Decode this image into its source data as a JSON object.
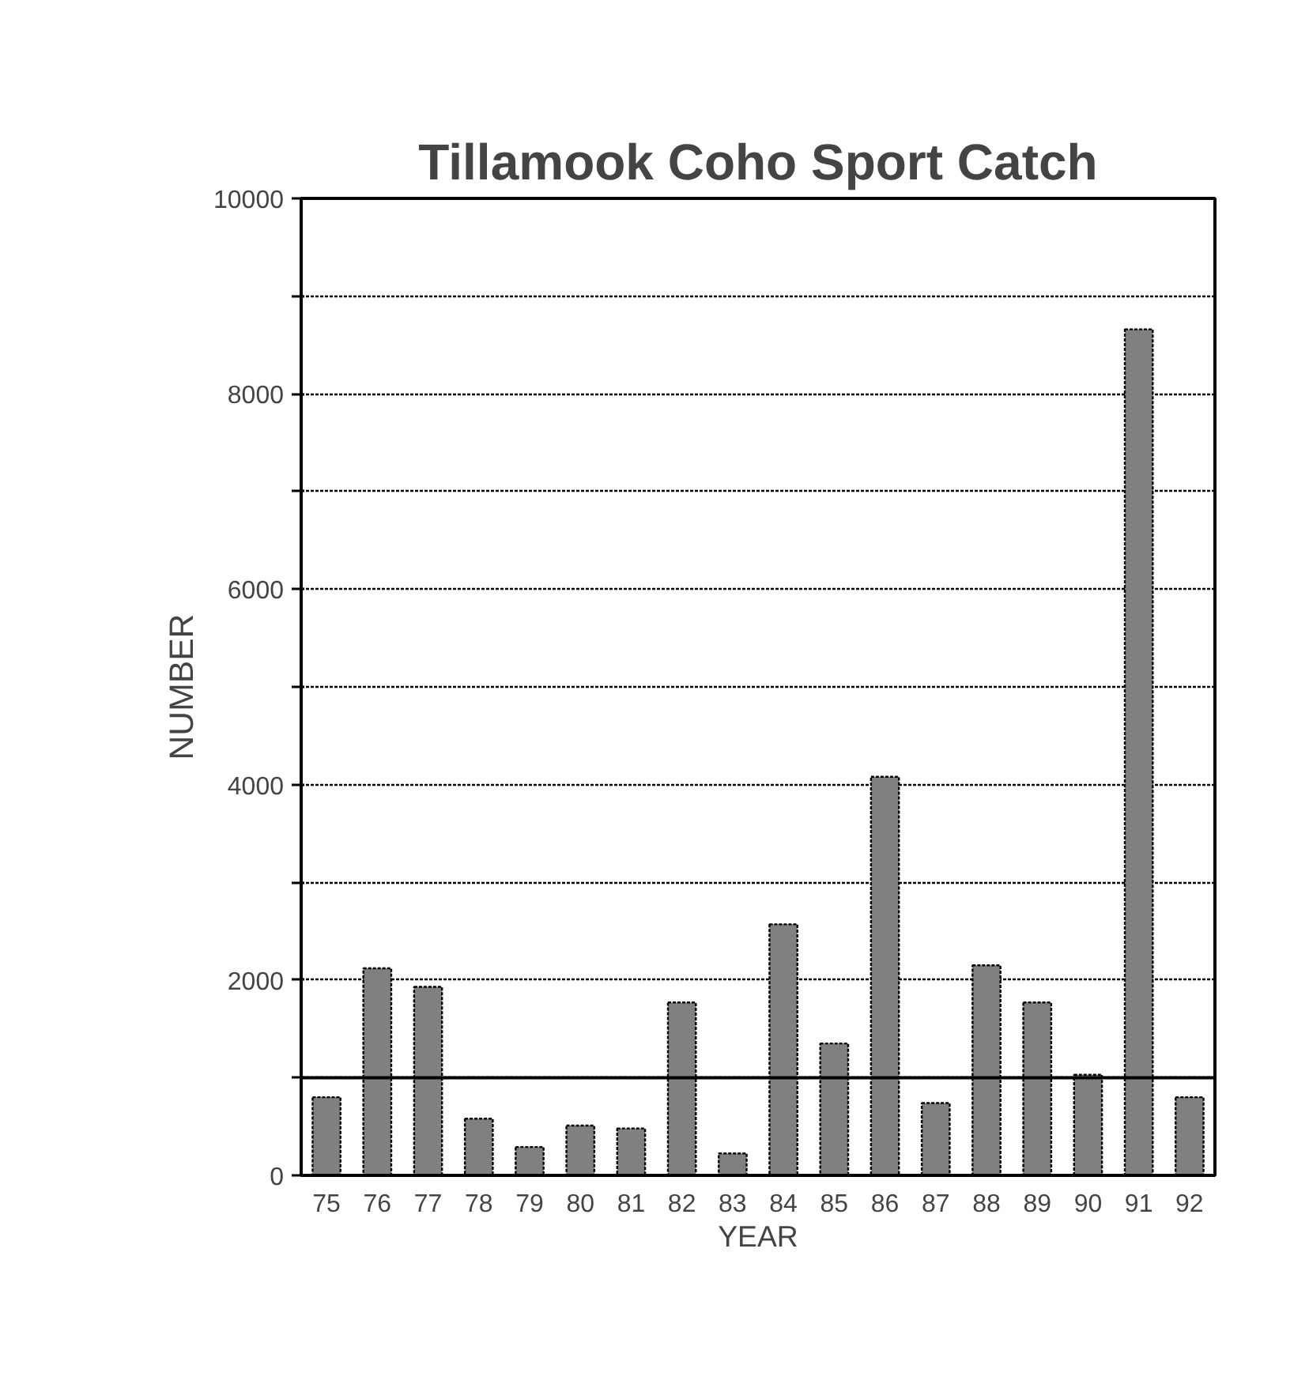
{
  "chart_data": {
    "type": "bar",
    "title": "Tillamook Coho Sport Catch",
    "xlabel": "YEAR",
    "ylabel": "NUMBER",
    "categories": [
      "75",
      "76",
      "77",
      "78",
      "79",
      "80",
      "81",
      "82",
      "83",
      "84",
      "85",
      "86",
      "87",
      "88",
      "89",
      "90",
      "91",
      "92"
    ],
    "values": [
      800,
      2120,
      1930,
      580,
      290,
      510,
      480,
      1770,
      225,
      2570,
      1350,
      4080,
      740,
      2150,
      1770,
      1030,
      8660,
      800
    ],
    "color": "#808080",
    "ylim": [
      0,
      10000
    ],
    "yticks": [
      0,
      {
        "value": 1000,
        "label": null
      },
      2000,
      {
        "value": 3000,
        "label": null
      },
      4000,
      {
        "value": 5000,
        "label": null
      },
      6000,
      {
        "value": 7000,
        "label": null
      },
      8000,
      {
        "value": 9000,
        "label": null
      },
      10000
    ],
    "grid": "y",
    "ref_lines": [
      {
        "axis": "y",
        "value": 1000,
        "label": null,
        "color": "#000000",
        "line_style": "solid"
      }
    ]
  }
}
